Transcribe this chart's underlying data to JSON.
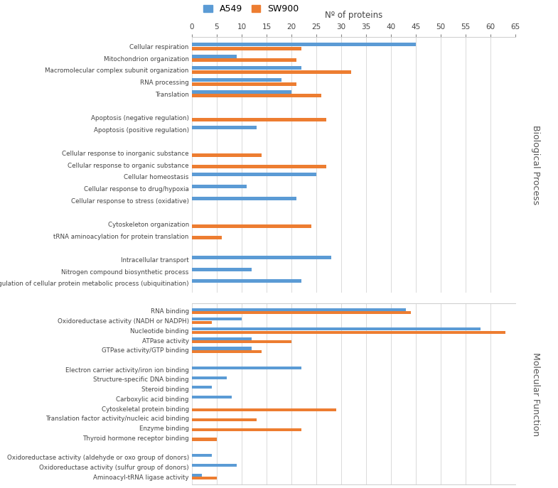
{
  "legend_labels": [
    "A549",
    "SW900"
  ],
  "colors": [
    "#5b9bd5",
    "#ed7d31"
  ],
  "xlabel": "Nº of proteins",
  "xlim": [
    0,
    65
  ],
  "xticks": [
    0,
    5,
    10,
    15,
    20,
    25,
    30,
    35,
    40,
    45,
    50,
    55,
    60,
    65
  ],
  "section_label_bp": "Biological Process",
  "section_label_mf": "Molecular Function",
  "bp_categories": [
    "Cellular respiration",
    "Mitochondrion organization",
    "Macromolecular complex subunit organization",
    "RNA processing",
    "Translation",
    "",
    "Apoptosis (negative regulation)",
    "Apoptosis (positive regulation)",
    "",
    "Cellular response to inorganic substance",
    "Cellular response to organic substance",
    "Cellular homeostasis",
    "Cellular response to drug/hypoxia",
    "Cellular response to stress (oxidative)",
    "",
    "Cytoskeleton organization",
    "tRNA aminoacylation for protein translation",
    "",
    "Intracellular transport",
    "Nitrogen compound biosynthetic process",
    "Regulation of cellular protein metabolic process (ubiquitination)"
  ],
  "bp_A549": [
    45,
    9,
    22,
    18,
    20,
    0,
    0,
    13,
    0,
    0,
    0,
    25,
    11,
    21,
    0,
    0,
    0,
    0,
    28,
    12,
    22
  ],
  "bp_SW900": [
    22,
    21,
    32,
    21,
    26,
    0,
    27,
    0,
    0,
    14,
    27,
    0,
    0,
    0,
    0,
    24,
    6,
    0,
    0,
    0,
    0
  ],
  "mf_categories": [
    "RNA binding",
    "Oxidoreductase activity (NADH or NADPH)",
    "Nucleotide binding",
    "ATPase activity",
    "GTPase activity/GTP binding",
    "",
    "Electron carrier activity/iron ion binding",
    "Structure-specific DNA binding",
    "Steroid binding",
    "Carboxylic acid binding",
    "Cytoskeletal protein binding",
    "Translation factor activity/nucleic acid binding",
    "Enzyme binding",
    "Thyroid hormone receptor binding",
    "",
    "Oxidoreductase activity (aldehyde or oxo group of donors)",
    "Oxidoreductase activity (sulfur group of donors)",
    "Aminoacyl-tRNA ligase activity"
  ],
  "mf_A549": [
    43,
    10,
    58,
    12,
    12,
    0,
    22,
    7,
    4,
    8,
    0,
    0,
    0,
    0,
    0,
    4,
    9,
    2
  ],
  "mf_SW900": [
    44,
    4,
    63,
    20,
    14,
    0,
    0,
    0,
    0,
    0,
    29,
    13,
    22,
    5,
    0,
    0,
    0,
    5
  ]
}
